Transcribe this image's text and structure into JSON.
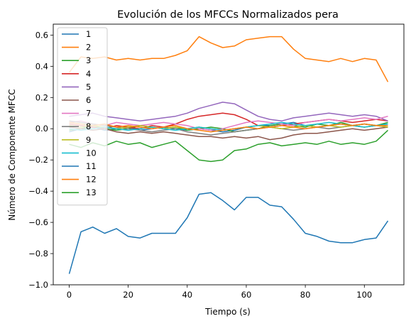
{
  "chart_data": {
    "type": "line",
    "title": "Evolución de los MFCCs Normalizados pera",
    "xlabel": "Tiempo (s)",
    "ylabel": "Número de Componente MFCC",
    "xlim": [
      -5.4,
      113.4
    ],
    "ylim": [
      -1.0,
      0.67
    ],
    "xticks": [
      0,
      20,
      40,
      60,
      80,
      100
    ],
    "yticks": [
      -1.0,
      -0.8,
      -0.6,
      -0.4,
      -0.2,
      0.0,
      0.2,
      0.4,
      0.6
    ],
    "ytick_labels": [
      "−1.0",
      "−0.8",
      "−0.6",
      "−0.4",
      "−0.2",
      "0.0",
      "0.2",
      "0.4",
      "0.6"
    ],
    "grid": false,
    "legend_position": "upper-left",
    "x": [
      0,
      4,
      8,
      12,
      16,
      20,
      24,
      28,
      32,
      36,
      40,
      44,
      48,
      52,
      56,
      60,
      64,
      68,
      72,
      76,
      80,
      84,
      88,
      92,
      96,
      100,
      104,
      108
    ],
    "series": [
      {
        "name": "1",
        "color": "#1f77b4",
        "values": [
          -0.02,
          0.0,
          0.01,
          -0.01,
          0.0,
          0.01,
          -0.01,
          0.0,
          0.01,
          0.0,
          -0.01,
          0.0,
          -0.01,
          -0.02,
          -0.01,
          0.01,
          0.02,
          0.02,
          0.03,
          0.04,
          0.02,
          0.01,
          0.02,
          0.03,
          0.02,
          0.03,
          0.02,
          0.03
        ]
      },
      {
        "name": "2",
        "color": "#ff7f0e",
        "values": [
          0.36,
          0.46,
          0.45,
          0.46,
          0.44,
          0.45,
          0.44,
          0.45,
          0.45,
          0.47,
          0.5,
          0.59,
          0.55,
          0.52,
          0.53,
          0.57,
          0.58,
          0.59,
          0.59,
          0.51,
          0.45,
          0.44,
          0.43,
          0.45,
          0.43,
          0.45,
          0.44,
          0.3
        ]
      },
      {
        "name": "3",
        "color": "#2ca02c",
        "values": [
          -0.01,
          0.0,
          0.02,
          0.0,
          -0.01,
          0.0,
          0.02,
          0.01,
          0.0,
          0.01,
          -0.01,
          0.0,
          0.01,
          0.0,
          -0.02,
          -0.01,
          0.0,
          0.02,
          0.03,
          0.02,
          0.01,
          0.03,
          0.02,
          0.04,
          0.02,
          0.03,
          0.02,
          0.04
        ]
      },
      {
        "name": "4",
        "color": "#d62728",
        "values": [
          0.03,
          0.02,
          0.01,
          0.0,
          0.02,
          0.01,
          0.0,
          0.02,
          0.01,
          0.03,
          0.06,
          0.08,
          0.09,
          0.1,
          0.09,
          0.06,
          0.02,
          0.01,
          0.02,
          0.03,
          0.04,
          0.05,
          0.06,
          0.05,
          0.04,
          0.05,
          0.06,
          0.05
        ]
      },
      {
        "name": "5",
        "color": "#9467bd",
        "values": [
          0.08,
          0.09,
          0.1,
          0.08,
          0.07,
          0.06,
          0.05,
          0.06,
          0.07,
          0.08,
          0.1,
          0.13,
          0.15,
          0.17,
          0.16,
          0.12,
          0.08,
          0.06,
          0.05,
          0.07,
          0.08,
          0.09,
          0.1,
          0.09,
          0.08,
          0.09,
          0.08,
          0.05
        ]
      },
      {
        "name": "6",
        "color": "#8c564b",
        "values": [
          0.01,
          0.0,
          -0.01,
          0.0,
          -0.02,
          -0.03,
          -0.02,
          -0.03,
          -0.02,
          -0.03,
          -0.04,
          -0.05,
          -0.05,
          -0.06,
          -0.05,
          -0.06,
          -0.05,
          -0.07,
          -0.06,
          -0.04,
          -0.03,
          -0.03,
          -0.02,
          -0.01,
          0.0,
          -0.01,
          0.0,
          0.01
        ]
      },
      {
        "name": "7",
        "color": "#e377c2",
        "values": [
          0.04,
          0.05,
          0.03,
          0.02,
          0.04,
          0.03,
          0.02,
          0.03,
          0.04,
          0.03,
          0.02,
          0.0,
          -0.01,
          0.0,
          0.02,
          0.04,
          0.05,
          0.04,
          0.03,
          0.02,
          0.04,
          0.05,
          0.06,
          0.05,
          0.06,
          0.07,
          0.06,
          0.08
        ]
      },
      {
        "name": "8",
        "color": "#7f7f7f",
        "values": [
          0.05,
          0.04,
          0.03,
          0.02,
          0.01,
          0.0,
          -0.01,
          -0.02,
          -0.01,
          0.0,
          -0.02,
          -0.03,
          -0.04,
          -0.03,
          -0.02,
          -0.01,
          0.0,
          0.01,
          0.0,
          -0.01,
          0.0,
          0.01,
          0.0,
          0.01,
          0.02,
          0.01,
          0.02,
          0.01
        ]
      },
      {
        "name": "9",
        "color": "#bcbd22",
        "values": [
          0.02,
          0.01,
          0.02,
          0.01,
          0.0,
          0.01,
          0.02,
          0.01,
          0.0,
          0.01,
          0.0,
          0.01,
          0.0,
          -0.01,
          0.0,
          0.01,
          0.02,
          0.01,
          0.0,
          0.01,
          0.02,
          0.01,
          0.02,
          0.01,
          0.02,
          0.01,
          0.02,
          0.01
        ]
      },
      {
        "name": "10",
        "color": "#17becf",
        "values": [
          0.0,
          -0.01,
          0.0,
          0.01,
          0.0,
          -0.01,
          0.0,
          0.01,
          0.0,
          -0.01,
          0.0,
          0.01,
          0.0,
          -0.01,
          0.0,
          0.01,
          0.02,
          0.03,
          0.04,
          0.03,
          0.02,
          0.03,
          0.04,
          0.03,
          0.02,
          0.01,
          0.02,
          0.03
        ]
      },
      {
        "name": "11",
        "color": "#1f77b4",
        "values": [
          -0.93,
          -0.66,
          -0.63,
          -0.67,
          -0.64,
          -0.69,
          -0.7,
          -0.67,
          -0.67,
          -0.67,
          -0.57,
          -0.42,
          -0.41,
          -0.46,
          -0.52,
          -0.44,
          -0.44,
          -0.49,
          -0.5,
          -0.58,
          -0.67,
          -0.69,
          -0.72,
          -0.73,
          -0.73,
          -0.71,
          -0.7,
          -0.59
        ]
      },
      {
        "name": "12",
        "color": "#ff7f0e",
        "values": [
          0.04,
          0.03,
          0.02,
          0.03,
          0.01,
          0.02,
          0.01,
          0.0,
          0.01,
          0.02,
          0.0,
          -0.01,
          -0.02,
          -0.01,
          0.0,
          0.01,
          0.0,
          0.01,
          0.02,
          0.01,
          0.0,
          0.01,
          0.02,
          0.03,
          0.02,
          0.03,
          0.02,
          0.02
        ]
      },
      {
        "name": "13",
        "color": "#2ca02c",
        "values": [
          -0.1,
          -0.12,
          -0.09,
          -0.11,
          -0.08,
          -0.1,
          -0.09,
          -0.12,
          -0.1,
          -0.08,
          -0.14,
          -0.2,
          -0.21,
          -0.2,
          -0.14,
          -0.13,
          -0.1,
          -0.09,
          -0.11,
          -0.1,
          -0.09,
          -0.1,
          -0.08,
          -0.1,
          -0.09,
          -0.1,
          -0.08,
          -0.01
        ]
      }
    ]
  }
}
